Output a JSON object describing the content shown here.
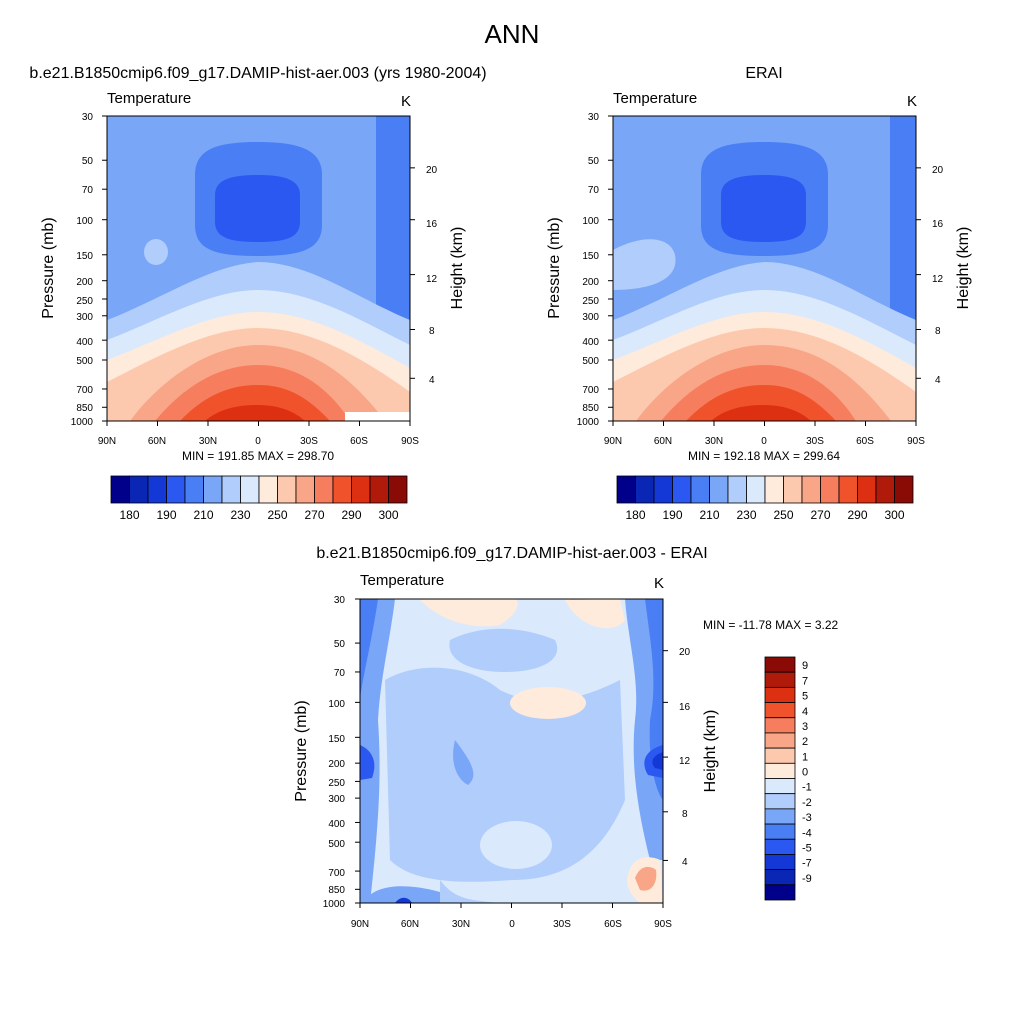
{
  "figure": {
    "title": "ANN"
  },
  "colormaps": {
    "abs_colors": [
      "#00008b",
      "#0a26b5",
      "#1438d6",
      "#2b58f0",
      "#4a7ef5",
      "#7aa6f8",
      "#b0cdfb",
      "#dbe9fd",
      "#feebdc",
      "#fdc9ae",
      "#f9a587",
      "#f67d5d",
      "#f0522c",
      "#dd2f12",
      "#b01a0a",
      "#8a0a05"
    ],
    "abs_labels": [
      "180",
      "190",
      "210",
      "230",
      "250",
      "270",
      "290",
      "300"
    ],
    "diff_colors": [
      "#8a0a05",
      "#b01a0a",
      "#dd2f12",
      "#f0522c",
      "#f67d5d",
      "#f9a587",
      "#fdc9ae",
      "#feebdc",
      "#dbe9fd",
      "#b0cdfb",
      "#7aa6f8",
      "#4a7ef5",
      "#2b58f0",
      "#1438d6",
      "#0a26b5",
      "#00008b"
    ],
    "diff_labels": [
      "9",
      "7",
      "5",
      "4",
      "3",
      "2",
      "1",
      "0",
      "-1",
      "-2",
      "-3",
      "-4",
      "-5",
      "-7",
      "-9"
    ]
  },
  "panels": [
    {
      "id": "model",
      "title": "b.e21.B1850cmip6.f09_g17.DAMIP-hist-aer.003 (yrs 1980-2004)",
      "left_label": "Temperature",
      "right_label": "K",
      "minmax_text": "MIN = 191.85  MAX = 298.70",
      "ylabel": "Pressure (mb)",
      "y2label": "Height (km)"
    },
    {
      "id": "obs",
      "title": "ERAI",
      "left_label": "Temperature",
      "right_label": "K",
      "minmax_text": "MIN = 192.18  MAX = 299.64",
      "ylabel": "Pressure (mb)",
      "y2label": "Height (km)"
    },
    {
      "id": "diff",
      "title": "b.e21.B1850cmip6.f09_g17.DAMIP-hist-aer.003 - ERAI",
      "left_label": "Temperature",
      "right_label": "K",
      "minmax_text": "MIN = -11.78  MAX =   3.22",
      "ylabel": "Pressure (mb)",
      "y2label": "Height (km)"
    }
  ],
  "chart_data": [
    {
      "type": "heatmap",
      "title": "b.e21.B1850cmip6.f09_g17.DAMIP-hist-aer.003 (yrs 1980-2004)",
      "variable": "Temperature",
      "units": "K",
      "xlabel": "",
      "ylabel": "Pressure (mb)",
      "y2label": "Height (km)",
      "x_ticks": [
        "90N",
        "60N",
        "30N",
        "0",
        "30S",
        "60S",
        "90S"
      ],
      "y_ticks": [
        30,
        50,
        70,
        100,
        150,
        200,
        250,
        300,
        400,
        500,
        700,
        850,
        1000
      ],
      "y2_ticks": [
        4,
        8,
        12,
        16,
        20
      ],
      "ylim": [
        1000,
        30
      ],
      "y_scale": "log",
      "min": 191.85,
      "max": 298.7,
      "colorbar_labels": [
        "180",
        "190",
        "210",
        "230",
        "250",
        "270",
        "290",
        "300"
      ]
    },
    {
      "type": "heatmap",
      "title": "ERAI",
      "variable": "Temperature",
      "units": "K",
      "xlabel": "",
      "ylabel": "Pressure (mb)",
      "y2label": "Height (km)",
      "x_ticks": [
        "90N",
        "60N",
        "30N",
        "0",
        "30S",
        "60S",
        "90S"
      ],
      "y_ticks": [
        30,
        50,
        70,
        100,
        150,
        200,
        250,
        300,
        400,
        500,
        700,
        850,
        1000
      ],
      "y2_ticks": [
        4,
        8,
        12,
        16,
        20
      ],
      "ylim": [
        1000,
        30
      ],
      "y_scale": "log",
      "min": 192.18,
      "max": 299.64,
      "colorbar_labels": [
        "180",
        "190",
        "210",
        "230",
        "250",
        "270",
        "290",
        "300"
      ]
    },
    {
      "type": "heatmap",
      "title": "b.e21.B1850cmip6.f09_g17.DAMIP-hist-aer.003 - ERAI",
      "variable": "Temperature",
      "units": "K",
      "xlabel": "",
      "ylabel": "Pressure (mb)",
      "y2label": "Height (km)",
      "x_ticks": [
        "90N",
        "60N",
        "30N",
        "0",
        "30S",
        "60S",
        "90S"
      ],
      "y_ticks": [
        30,
        50,
        70,
        100,
        150,
        200,
        250,
        300,
        400,
        500,
        700,
        850,
        1000
      ],
      "y2_ticks": [
        4,
        8,
        12,
        16,
        20
      ],
      "ylim": [
        1000,
        30
      ],
      "y_scale": "log",
      "min": -11.78,
      "max": 3.22,
      "colorbar_labels": [
        "9",
        "7",
        "5",
        "4",
        "3",
        "2",
        "1",
        "0",
        "-1",
        "-2",
        "-3",
        "-4",
        "-5",
        "-7",
        "-9"
      ]
    }
  ]
}
